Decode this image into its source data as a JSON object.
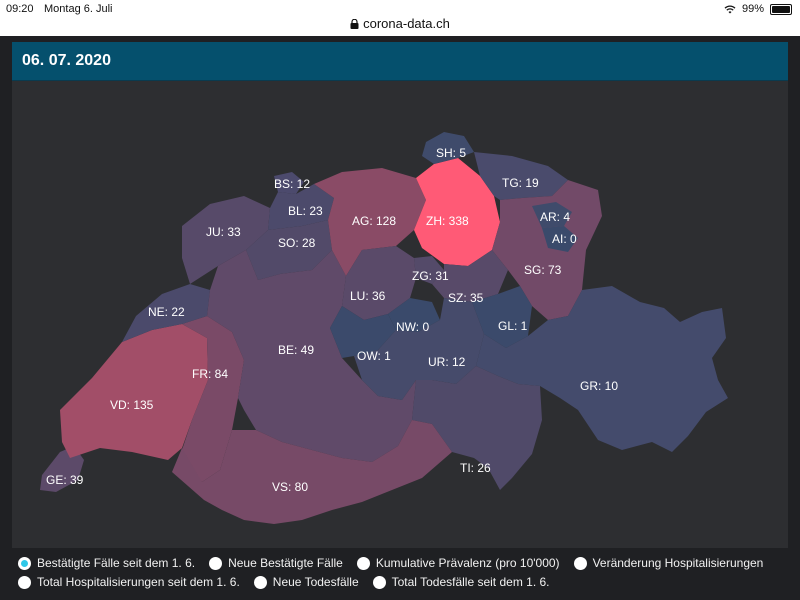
{
  "status_bar": {
    "time": "09:20",
    "date": "Montag 6. Juli",
    "url": "corona-data.ch",
    "battery": "99%"
  },
  "header": {
    "date": "06. 07. 2020"
  },
  "map": {
    "metric": "Bestätigte Fälle seit dem 1. 6.",
    "cantons": [
      {
        "code": "SH",
        "value": 5,
        "color": "#3f4b6b"
      },
      {
        "code": "BS",
        "value": 12,
        "color": "#4c4a6d"
      },
      {
        "code": "TG",
        "value": 19,
        "color": "#4a4b6c"
      },
      {
        "code": "BL",
        "value": 23,
        "color": "#4c4a6b"
      },
      {
        "code": "AG",
        "value": 128,
        "color": "#8a4b66"
      },
      {
        "code": "ZH",
        "value": 338,
        "color": "#ff5a76"
      },
      {
        "code": "AR",
        "value": 4,
        "color": "#3f4b6b"
      },
      {
        "code": "JU",
        "value": 33,
        "color": "#574a69"
      },
      {
        "code": "SO",
        "value": 28,
        "color": "#524a69"
      },
      {
        "code": "AI",
        "value": 0,
        "color": "#3a4a6b"
      },
      {
        "code": "ZG",
        "value": 31,
        "color": "#544a69"
      },
      {
        "code": "SG",
        "value": 73,
        "color": "#724a68"
      },
      {
        "code": "LU",
        "value": 36,
        "color": "#5a4a69"
      },
      {
        "code": "SZ",
        "value": 35,
        "color": "#584a69"
      },
      {
        "code": "NE",
        "value": 22,
        "color": "#4b4a6b"
      },
      {
        "code": "NW",
        "value": 0,
        "color": "#3a4a6b"
      },
      {
        "code": "GL",
        "value": 1,
        "color": "#3b4a6b"
      },
      {
        "code": "OW",
        "value": 1,
        "color": "#3b4a6b"
      },
      {
        "code": "BE",
        "value": 49,
        "color": "#604a69"
      },
      {
        "code": "UR",
        "value": 12,
        "color": "#464b6b"
      },
      {
        "code": "FR",
        "value": 84,
        "color": "#7a4a67"
      },
      {
        "code": "GR",
        "value": 10,
        "color": "#444b6c"
      },
      {
        "code": "VD",
        "value": 135,
        "color": "#a24e68"
      },
      {
        "code": "TI",
        "value": 26,
        "color": "#504a69"
      },
      {
        "code": "VS",
        "value": 80,
        "color": "#774a67"
      },
      {
        "code": "GE",
        "value": 39,
        "color": "#5c4a69"
      }
    ]
  },
  "legend": {
    "options": [
      {
        "id": "bestaetigte",
        "label": "Bestätigte Fälle seit dem 1. 6.",
        "checked": true
      },
      {
        "id": "neue",
        "label": "Neue Bestätigte Fälle",
        "checked": false
      },
      {
        "id": "praevalenz",
        "label": "Kumulative Prävalenz (pro 10'000)",
        "checked": false
      },
      {
        "id": "hosp_change",
        "label": "Veränderung Hospitalisierungen",
        "checked": false
      },
      {
        "id": "hosp_total",
        "label": "Total Hospitalisierungen seit dem 1. 6.",
        "checked": false
      },
      {
        "id": "todes_neu",
        "label": "Neue Todesfälle",
        "checked": false
      },
      {
        "id": "todes_total",
        "label": "Total Todesfälle seit dem 1. 6.",
        "checked": false
      }
    ]
  }
}
